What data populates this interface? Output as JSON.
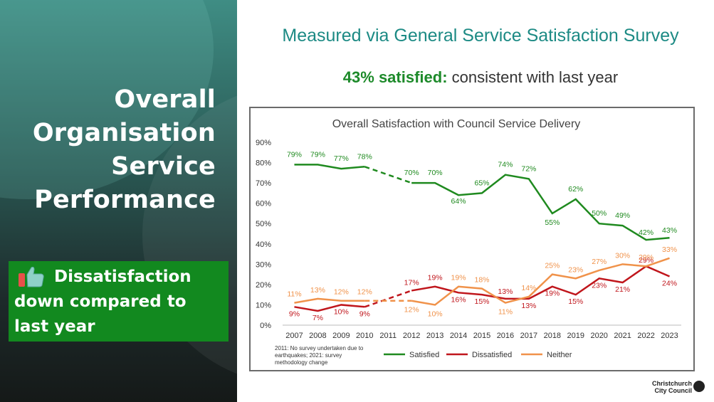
{
  "left": {
    "title_lines": [
      "Overall",
      "Organisation",
      "Service",
      "Performance"
    ],
    "callout": {
      "icon": "thumbs-up-icon",
      "line1": "Dissatisfaction",
      "line2": "down  compared to",
      "line3": "last year"
    }
  },
  "header": {
    "subtitle": "Measured via General Service Satisfaction Survey",
    "satisfied_bold": "43% satisfied:",
    "satisfied_rest": " consistent with last year"
  },
  "chart_data": {
    "type": "line",
    "title": "Overall Satisfaction with Council Service Delivery",
    "categories": [
      "2007",
      "2008",
      "2009",
      "2010",
      "2011",
      "2012",
      "2013",
      "2014",
      "2015",
      "2016",
      "2017",
      "2018",
      "2019",
      "2020",
      "2021",
      "2022",
      "2023"
    ],
    "ylim": [
      0,
      90
    ],
    "yticks": [
      "0%",
      "10%",
      "20%",
      "30%",
      "40%",
      "50%",
      "60%",
      "70%",
      "80%",
      "90%"
    ],
    "grid": false,
    "legend_position": "bottom",
    "note": "2011: No survey undertaken due to earthquakes; 2021: survey methodology change",
    "series": [
      {
        "name": "Satisfied",
        "color": "#1f8a1f",
        "values": [
          79,
          79,
          77,
          78,
          null,
          70,
          70,
          64,
          65,
          74,
          72,
          55,
          62,
          50,
          49,
          42,
          43
        ],
        "labels": [
          "79%",
          "79%",
          "77%",
          "78%",
          null,
          "70%",
          "70%",
          "64%",
          "65%",
          "74%",
          "72%",
          "55%",
          "62%",
          "50%",
          "49%",
          "42%",
          "43%"
        ]
      },
      {
        "name": "Dissatisfied",
        "color": "#c0161c",
        "values": [
          9,
          7,
          10,
          9,
          null,
          17,
          19,
          16,
          15,
          13,
          13,
          19,
          15,
          23,
          21,
          29,
          24
        ],
        "labels": [
          "9%",
          "7%",
          "10%",
          "9%",
          null,
          "17%",
          "19%",
          "16%",
          "15%",
          "13%",
          "13%",
          "19%",
          "15%",
          "23%",
          "21%",
          "29%",
          "24%"
        ]
      },
      {
        "name": "Neither",
        "color": "#f0924a",
        "values": [
          11,
          13,
          12,
          12,
          null,
          12,
          10,
          19,
          18,
          11,
          14,
          25,
          23,
          27,
          30,
          29,
          33
        ],
        "labels": [
          "11%",
          "13%",
          "12%",
          "12%",
          null,
          "12%",
          "10%",
          "19%",
          "18%",
          "11%",
          "14%",
          "25%",
          "23%",
          "27%",
          "30%",
          "29%",
          "33%"
        ]
      }
    ]
  },
  "logo": {
    "line1": "Christchurch",
    "line2": "City Council"
  }
}
